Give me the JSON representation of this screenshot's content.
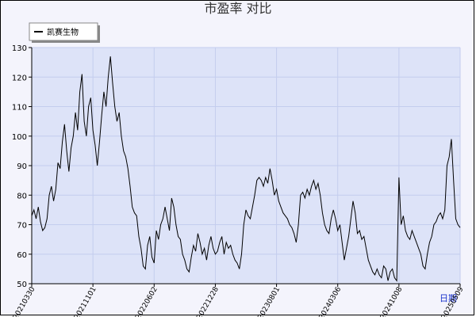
{
  "chart_data": {
    "type": "line",
    "title": "市盈率  对比",
    "xlabel": "日期",
    "categories": [
      "20210330",
      null,
      null,
      null,
      null,
      null,
      null,
      null,
      null,
      null,
      null,
      null,
      null,
      null,
      null,
      null,
      null,
      null,
      null,
      null,
      null,
      null,
      null,
      null,
      null,
      null,
      null,
      null,
      "20211101",
      null,
      null,
      null,
      null,
      null,
      null,
      null,
      null,
      null,
      null,
      null,
      null,
      null,
      null,
      null,
      null,
      null,
      null,
      null,
      null,
      null,
      null,
      null,
      null,
      null,
      null,
      null,
      "20220602",
      null,
      null,
      null,
      null,
      null,
      null,
      null,
      null,
      null,
      null,
      null,
      null,
      null,
      null,
      null,
      null,
      null,
      null,
      null,
      null,
      null,
      null,
      null,
      null,
      null,
      null,
      null,
      "20221228",
      null,
      null,
      null,
      null,
      null,
      null,
      null,
      null,
      null,
      null,
      null,
      null,
      null,
      null,
      null,
      null,
      null,
      null,
      null,
      null,
      null,
      null,
      null,
      null,
      null,
      null,
      null,
      "20230801",
      null,
      null,
      null,
      null,
      null,
      null,
      null,
      null,
      null,
      null,
      null,
      null,
      null,
      null,
      null,
      null,
      null,
      null,
      null,
      null,
      null,
      null,
      null,
      null,
      null,
      null,
      null,
      "20240306",
      null,
      null,
      null,
      null,
      null,
      null,
      null,
      null,
      null,
      null,
      null,
      null,
      null,
      null,
      null,
      null,
      null,
      null,
      null,
      null,
      null,
      null,
      null,
      null,
      null,
      null,
      null,
      "20241008",
      null,
      null,
      null,
      null,
      null,
      null,
      null,
      null,
      null,
      null,
      null,
      null,
      null,
      null,
      null,
      null,
      null,
      null,
      null,
      null,
      null,
      null,
      null,
      null,
      null,
      null,
      null,
      "20250509"
    ],
    "series": [
      {
        "name": "凯赛生物",
        "color": "#000000",
        "values": [
          73,
          75,
          72,
          76,
          71,
          68,
          69,
          72,
          80,
          83,
          78,
          82,
          91,
          89,
          98,
          104,
          95,
          88,
          96,
          100,
          108,
          102,
          115,
          121,
          105,
          100,
          110,
          113,
          102,
          97,
          90,
          98,
          107,
          115,
          110,
          120,
          127,
          118,
          110,
          105,
          108,
          100,
          95,
          93,
          89,
          83,
          76,
          74,
          73,
          66,
          62,
          56,
          55,
          63,
          66,
          59,
          57,
          68,
          65,
          70,
          72,
          76,
          72,
          68,
          79,
          76,
          70,
          66,
          65,
          60,
          58,
          55,
          54,
          59,
          63,
          61,
          67,
          64,
          60,
          62,
          58,
          63,
          66,
          62,
          60,
          61,
          64,
          66,
          60,
          64,
          62,
          63,
          60,
          58,
          57,
          55,
          60,
          70,
          75,
          73,
          72,
          76,
          80,
          85,
          86,
          85,
          83,
          86,
          84,
          89,
          85,
          80,
          82,
          78,
          76,
          74,
          73,
          72,
          70,
          69,
          67,
          64,
          70,
          80,
          81,
          79,
          82,
          80,
          83,
          85,
          82,
          84,
          80,
          74,
          70,
          68,
          67,
          72,
          75,
          72,
          68,
          70,
          64,
          58,
          62,
          66,
          72,
          78,
          74,
          67,
          68,
          65,
          66,
          62,
          58,
          56,
          54,
          53,
          55,
          53,
          52,
          56,
          55,
          51,
          54,
          55,
          52,
          51,
          86,
          70,
          73,
          68,
          66,
          65,
          68,
          66,
          64,
          62,
          60,
          56,
          55,
          60,
          64,
          66,
          70,
          71,
          73,
          74,
          72,
          75,
          90,
          93,
          99,
          85,
          72,
          70,
          69
        ]
      }
    ],
    "ylim": [
      50,
      130
    ],
    "yticks": [
      50,
      60,
      70,
      80,
      90,
      100,
      110,
      120,
      130
    ],
    "grid": true,
    "legend": "upper left"
  }
}
